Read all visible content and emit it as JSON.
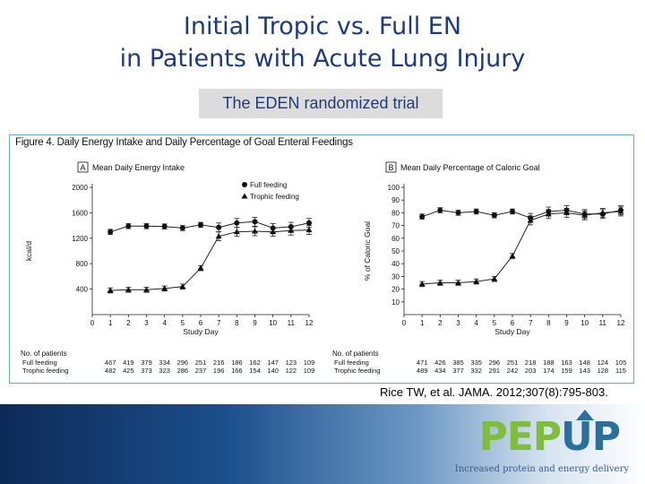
{
  "slide": {
    "title_line1": "Initial Tropic vs. Full EN",
    "title_line2": "in Patients with Acute Lung Injury",
    "subtitle": "The EDEN randomized trial",
    "citation": "Rice TW, et al. JAMA. 2012;307(8):795-803.",
    "logo": {
      "word_part1": "PEP",
      "word_part2": "UP",
      "tagline": "Increased protein and energy delivery"
    },
    "colors": {
      "title": "#1f3a7a",
      "figure_border": "#6aa8c9",
      "logo_green": "#7fbd3d",
      "logo_blue": "#2d6f9c"
    }
  },
  "figure": {
    "title": "Figure 4. Daily Energy Intake and Daily Percentage of Goal Enteral Feedings",
    "patients_label": "No. of patients",
    "group_full": "Full feeding",
    "group_trophic": "Trophic feeding"
  },
  "chart_data": [
    {
      "type": "line",
      "panel_letter": "A",
      "title": "Mean Daily Energy Intake",
      "xlabel": "Study Day",
      "ylabel": "kcal/d",
      "x": [
        1,
        2,
        3,
        4,
        5,
        6,
        7,
        8,
        9,
        10,
        11,
        12
      ],
      "xticks": [
        0,
        1,
        2,
        3,
        4,
        5,
        6,
        7,
        8,
        9,
        10,
        11,
        12
      ],
      "yticks": [
        400,
        800,
        1200,
        1600,
        2000
      ],
      "ylim": [
        0,
        2000
      ],
      "xlim": [
        0,
        12
      ],
      "legend": "top-right",
      "series": [
        {
          "name": "Full feeding",
          "marker": "circle",
          "values": [
            1300,
            1390,
            1390,
            1385,
            1360,
            1410,
            1370,
            1440,
            1460,
            1360,
            1380,
            1440
          ]
        },
        {
          "name": "Trophic feeding",
          "marker": "triangle",
          "values": [
            380,
            390,
            390,
            410,
            440,
            730,
            1230,
            1300,
            1310,
            1300,
            1320,
            1330
          ]
        }
      ],
      "patients": {
        "full": [
          "467",
          "419",
          "379",
          "334",
          "296",
          "251",
          "216",
          "186",
          "162",
          "147",
          "123",
          "109"
        ],
        "trophic": [
          "482",
          "425",
          "373",
          "323",
          "286",
          "237",
          "196",
          "166",
          "154",
          "140",
          "122",
          "109"
        ]
      }
    },
    {
      "type": "line",
      "panel_letter": "B",
      "title": "Mean Daily Percentage of Caloric Goal",
      "xlabel": "Study Day",
      "ylabel": "% of Caloric Goal",
      "x": [
        1,
        2,
        3,
        4,
        5,
        6,
        7,
        8,
        9,
        10,
        11,
        12
      ],
      "xticks": [
        0,
        1,
        2,
        3,
        4,
        5,
        6,
        7,
        8,
        9,
        10,
        11,
        12
      ],
      "yticks": [
        10,
        20,
        30,
        40,
        50,
        60,
        70,
        80,
        90,
        100
      ],
      "ylim": [
        0,
        100
      ],
      "xlim": [
        0,
        12
      ],
      "series": [
        {
          "name": "Full feeding",
          "marker": "circle",
          "values": [
            77,
            82,
            80,
            81,
            78,
            81,
            76,
            81,
            82,
            79,
            79,
            82
          ]
        },
        {
          "name": "Trophic feeding",
          "marker": "triangle",
          "values": [
            24,
            25,
            25,
            26,
            28,
            46,
            74,
            79,
            80,
            78,
            80,
            81
          ]
        }
      ],
      "patients": {
        "full": [
          "471",
          "426",
          "385",
          "335",
          "296",
          "251",
          "218",
          "188",
          "163",
          "148",
          "124",
          "105"
        ],
        "trophic": [
          "489",
          "434",
          "377",
          "332",
          "291",
          "242",
          "203",
          "174",
          "159",
          "143",
          "128",
          "115"
        ]
      }
    }
  ]
}
